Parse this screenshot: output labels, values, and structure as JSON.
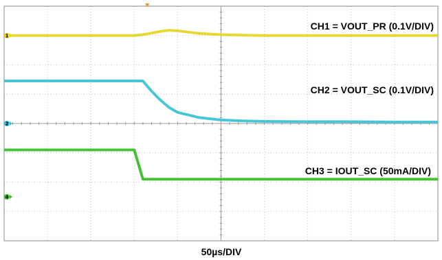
{
  "chart_data": {
    "type": "line",
    "x": [
      0,
      0.5,
      1,
      1.5,
      2,
      2.5,
      3,
      3.2,
      3.4,
      3.6,
      3.8,
      4,
      4.5,
      5,
      5.5,
      6,
      7,
      8,
      9,
      10
    ],
    "xlim": [
      0,
      10
    ],
    "ylim": [
      -4,
      4
    ],
    "xlabel": "50µs/DIV",
    "grid": true,
    "series": [
      {
        "name": "CH1 = VOUT_PR (0.1V/DIV)",
        "color": "#e6d62a",
        "values": [
          3.0,
          3.0,
          3.0,
          3.0,
          3.0,
          3.0,
          3.0,
          3.03,
          3.08,
          3.14,
          3.18,
          3.16,
          3.07,
          3.03,
          3.01,
          3.0,
          3.0,
          3.0,
          3.0,
          3.0
        ]
      },
      {
        "name": "CH2 = VOUT_SC (0.1V/DIV)",
        "color": "#3fc3d6",
        "values": [
          1.45,
          1.45,
          1.45,
          1.45,
          1.45,
          1.45,
          1.45,
          1.45,
          1.1,
          0.8,
          0.55,
          0.38,
          0.2,
          0.12,
          0.09,
          0.07,
          0.06,
          0.06,
          0.05,
          0.05
        ]
      },
      {
        "name": "CH3 = IOUT_SC (50mA/DIV)",
        "color": "#3cbf2a",
        "values": [
          -0.9,
          -0.9,
          -0.9,
          -0.9,
          -0.9,
          -0.9,
          -0.9,
          -1.9,
          -1.9,
          -1.9,
          -1.9,
          -1.9,
          -1.9,
          -1.9,
          -1.9,
          -1.9,
          -1.9,
          -1.9,
          -1.9,
          -1.9
        ]
      }
    ],
    "channel_markers": [
      {
        "name": "1",
        "level": 3.0,
        "color": "#e6d62a"
      },
      {
        "name": "2",
        "level": 0.0,
        "color": "#3fc3d6"
      },
      {
        "name": "4",
        "level": -2.5,
        "color": "#3cbf2a"
      }
    ],
    "trigger_position": 3.3,
    "trigger_color": "#f28c28"
  }
}
